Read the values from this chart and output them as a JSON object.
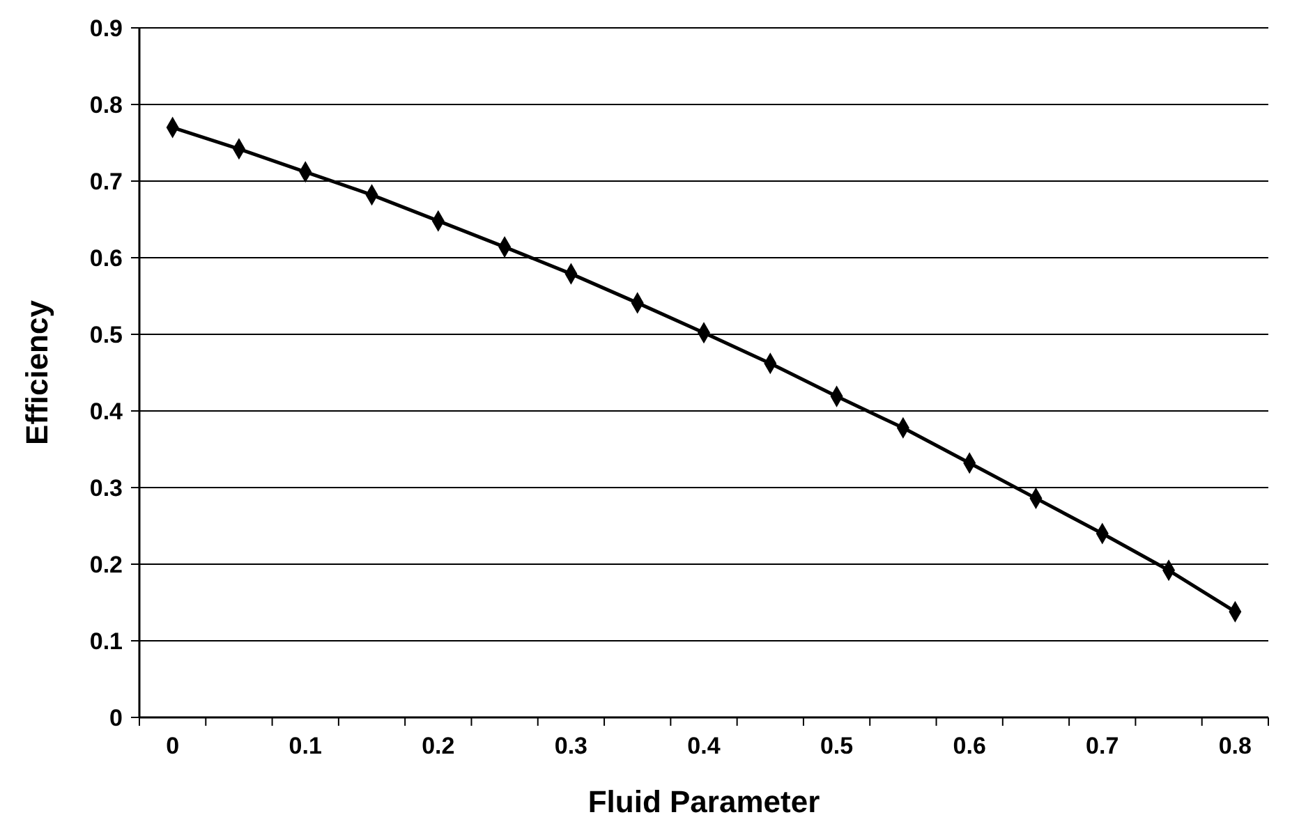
{
  "chart_data": {
    "type": "line",
    "xlabel": "Fluid Parameter",
    "ylabel": "Efficiency",
    "categories": [
      "0",
      null,
      "0.1",
      null,
      "0.2",
      null,
      "0.3",
      null,
      "0.4",
      null,
      "0.5",
      null,
      "0.6",
      null,
      "0.7",
      null,
      "0.8"
    ],
    "series": [
      {
        "color": "#000000",
        "values": [
          0.77,
          0.742,
          0.712,
          0.682,
          0.648,
          0.614,
          0.579,
          0.541,
          0.502,
          0.462,
          0.419,
          0.378,
          0.332,
          0.286,
          0.24,
          0.192,
          0.138
        ]
      }
    ],
    "ylim": [
      0,
      0.9
    ],
    "yticks": [
      0,
      0.1,
      0.2,
      0.3,
      0.4,
      0.5,
      0.6,
      0.7,
      0.8,
      0.9
    ],
    "grid": "y",
    "marker": "diamond",
    "line_style": "solid"
  }
}
